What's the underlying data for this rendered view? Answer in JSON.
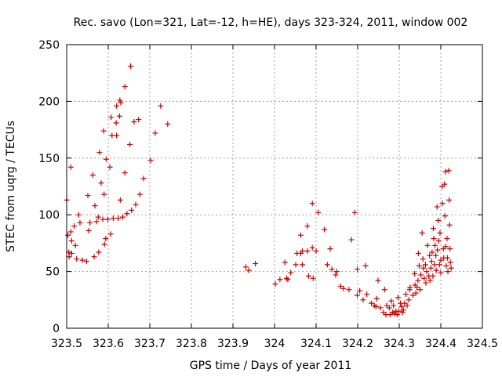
{
  "chart_data": {
    "type": "scatter",
    "title": "Rec. savo (Lon=321, Lat=-12, h=HE), days 323-324, 2011, window 002",
    "xlabel": "GPS time / Days of year 2011",
    "ylabel": "STEC from uqrg / TECUs",
    "xlim": [
      323.5,
      324.5
    ],
    "ylim": [
      0,
      250
    ],
    "x_ticks": [
      323.5,
      323.6,
      323.7,
      323.8,
      323.9,
      324.0,
      324.1,
      324.2,
      324.3,
      324.4,
      324.5
    ],
    "x_tick_labels": [
      "323.5",
      "323.6",
      "323.7",
      "323.8",
      "323.9",
      "324",
      "324.1",
      "324.2",
      "324.3",
      "324.4",
      "324.5"
    ],
    "y_ticks": [
      0,
      50,
      100,
      150,
      200,
      250
    ],
    "y_tick_labels": [
      "0",
      "50",
      "100",
      "150",
      "200",
      "250"
    ],
    "grid": true,
    "marker": "+",
    "color": "#cc0000",
    "series": [
      {
        "points": [
          [
            323.5,
            113
          ],
          [
            323.503,
            82
          ],
          [
            323.505,
            67
          ],
          [
            323.506,
            63
          ],
          [
            323.51,
            142
          ],
          [
            323.51,
            85
          ],
          [
            323.512,
            77
          ],
          [
            323.512,
            66
          ],
          [
            323.518,
            90
          ],
          [
            323.521,
            73
          ],
          [
            323.524,
            61
          ],
          [
            323.529,
            100
          ],
          [
            323.532,
            93
          ],
          [
            323.538,
            60
          ],
          [
            323.548,
            59
          ],
          [
            323.551,
            117
          ],
          [
            323.553,
            86
          ],
          [
            323.556,
            93
          ],
          [
            323.563,
            135
          ],
          [
            323.566,
            63
          ],
          [
            323.568,
            108
          ],
          [
            323.572,
            94
          ],
          [
            323.576,
            98
          ],
          [
            323.577,
            67
          ],
          [
            323.579,
            155
          ],
          [
            323.583,
            128
          ],
          [
            323.587,
            96
          ],
          [
            323.589,
            174
          ],
          [
            323.59,
            118
          ],
          [
            323.591,
            74
          ],
          [
            323.594,
            79
          ],
          [
            323.595,
            149
          ],
          [
            323.599,
            96
          ],
          [
            323.604,
            142
          ],
          [
            323.606,
            83
          ],
          [
            323.607,
            186
          ],
          [
            323.609,
            170
          ],
          [
            323.612,
            97
          ],
          [
            323.619,
            181
          ],
          [
            323.62,
            196
          ],
          [
            323.62,
            170
          ],
          [
            323.624,
            97
          ],
          [
            323.627,
            187
          ],
          [
            323.628,
            201
          ],
          [
            323.629,
            113
          ],
          [
            323.63,
            199
          ],
          [
            323.635,
            98
          ],
          [
            323.64,
            213
          ],
          [
            323.64,
            137
          ],
          [
            323.645,
            101
          ],
          [
            323.652,
            162
          ],
          [
            323.654,
            231
          ],
          [
            323.656,
            104
          ],
          [
            323.662,
            182
          ],
          [
            323.666,
            109
          ],
          [
            323.673,
            184
          ],
          [
            323.676,
            118
          ],
          [
            323.685,
            132
          ],
          [
            323.702,
            148
          ],
          [
            323.713,
            172
          ],
          [
            323.726,
            196
          ],
          [
            323.743,
            180
          ],
          [
            323.931,
            54
          ],
          [
            323.938,
            51
          ],
          [
            323.954,
            57
          ],
          [
            324.002,
            39
          ],
          [
            324.013,
            43
          ],
          [
            324.025,
            58
          ],
          [
            324.029,
            44
          ],
          [
            324.032,
            43
          ],
          [
            324.039,
            49
          ],
          [
            324.051,
            56
          ],
          [
            324.054,
            66
          ],
          [
            324.063,
            82
          ],
          [
            324.063,
            66
          ],
          [
            324.067,
            56
          ],
          [
            324.067,
            68
          ],
          [
            324.079,
            90
          ],
          [
            324.079,
            68
          ],
          [
            324.082,
            46
          ],
          [
            324.091,
            110
          ],
          [
            324.091,
            71
          ],
          [
            324.093,
            44
          ],
          [
            324.1,
            68
          ],
          [
            324.105,
            102
          ],
          [
            324.12,
            87
          ],
          [
            324.127,
            56
          ],
          [
            324.134,
            70
          ],
          [
            324.138,
            52
          ],
          [
            324.147,
            47
          ],
          [
            324.15,
            50
          ],
          [
            324.159,
            37
          ],
          [
            324.166,
            35
          ],
          [
            324.179,
            34
          ],
          [
            324.185,
            78
          ],
          [
            324.193,
            102
          ],
          [
            324.199,
            29
          ],
          [
            324.199,
            52
          ],
          [
            324.205,
            33
          ],
          [
            324.213,
            25
          ],
          [
            324.219,
            55
          ],
          [
            324.222,
            30
          ],
          [
            324.233,
            22
          ],
          [
            324.24,
            20
          ],
          [
            324.244,
            19
          ],
          [
            324.246,
            26
          ],
          [
            324.249,
            42
          ],
          [
            324.255,
            18
          ],
          [
            324.262,
            14
          ],
          [
            324.265,
            34
          ],
          [
            324.268,
            12
          ],
          [
            324.27,
            20
          ],
          [
            324.276,
            18
          ],
          [
            324.278,
            12
          ],
          [
            324.281,
            24
          ],
          [
            324.284,
            14
          ],
          [
            324.286,
            20
          ],
          [
            324.288,
            13
          ],
          [
            324.292,
            15
          ],
          [
            324.295,
            12
          ],
          [
            324.297,
            27
          ],
          [
            324.299,
            15
          ],
          [
            324.303,
            22
          ],
          [
            324.306,
            19
          ],
          [
            324.308,
            14
          ],
          [
            324.31,
            16
          ],
          [
            324.313,
            22
          ],
          [
            324.316,
            30
          ],
          [
            324.319,
            20
          ],
          [
            324.323,
            25
          ],
          [
            324.325,
            34
          ],
          [
            324.326,
            36
          ],
          [
            324.333,
            29
          ],
          [
            324.337,
            48
          ],
          [
            324.338,
            38
          ],
          [
            324.34,
            31
          ],
          [
            324.343,
            36
          ],
          [
            324.345,
            42
          ],
          [
            324.346,
            66
          ],
          [
            324.348,
            55
          ],
          [
            324.35,
            34
          ],
          [
            324.352,
            47
          ],
          [
            324.355,
            84
          ],
          [
            324.357,
            61
          ],
          [
            324.358,
            53
          ],
          [
            324.36,
            44
          ],
          [
            324.363,
            56
          ],
          [
            324.364,
            40
          ],
          [
            324.366,
            50
          ],
          [
            324.368,
            73
          ],
          [
            324.371,
            46
          ],
          [
            324.373,
            64
          ],
          [
            324.374,
            42
          ],
          [
            324.376,
            53
          ],
          [
            324.378,
            59
          ],
          [
            324.379,
            67
          ],
          [
            324.381,
            46
          ],
          [
            324.382,
            88
          ],
          [
            324.383,
            79
          ],
          [
            324.385,
            56
          ],
          [
            324.386,
            73
          ],
          [
            324.388,
            64
          ],
          [
            324.389,
            51
          ],
          [
            324.391,
            107
          ],
          [
            324.392,
            69
          ],
          [
            324.394,
            95
          ],
          [
            324.395,
            77
          ],
          [
            324.397,
            56
          ],
          [
            324.398,
            84
          ],
          [
            324.4,
            60
          ],
          [
            324.4,
            49
          ],
          [
            324.403,
            125
          ],
          [
            324.404,
            110
          ],
          [
            324.406,
            70
          ],
          [
            324.407,
            62
          ],
          [
            324.409,
            127
          ],
          [
            324.41,
            99
          ],
          [
            324.411,
            138
          ],
          [
            324.412,
            72
          ],
          [
            324.413,
            55
          ],
          [
            324.415,
            79
          ],
          [
            324.416,
            62
          ],
          [
            324.417,
            50
          ],
          [
            324.419,
            139
          ],
          [
            324.42,
            113
          ],
          [
            324.421,
            91
          ],
          [
            324.422,
            70
          ],
          [
            324.423,
            58
          ],
          [
            324.425,
            53
          ]
        ]
      }
    ]
  }
}
